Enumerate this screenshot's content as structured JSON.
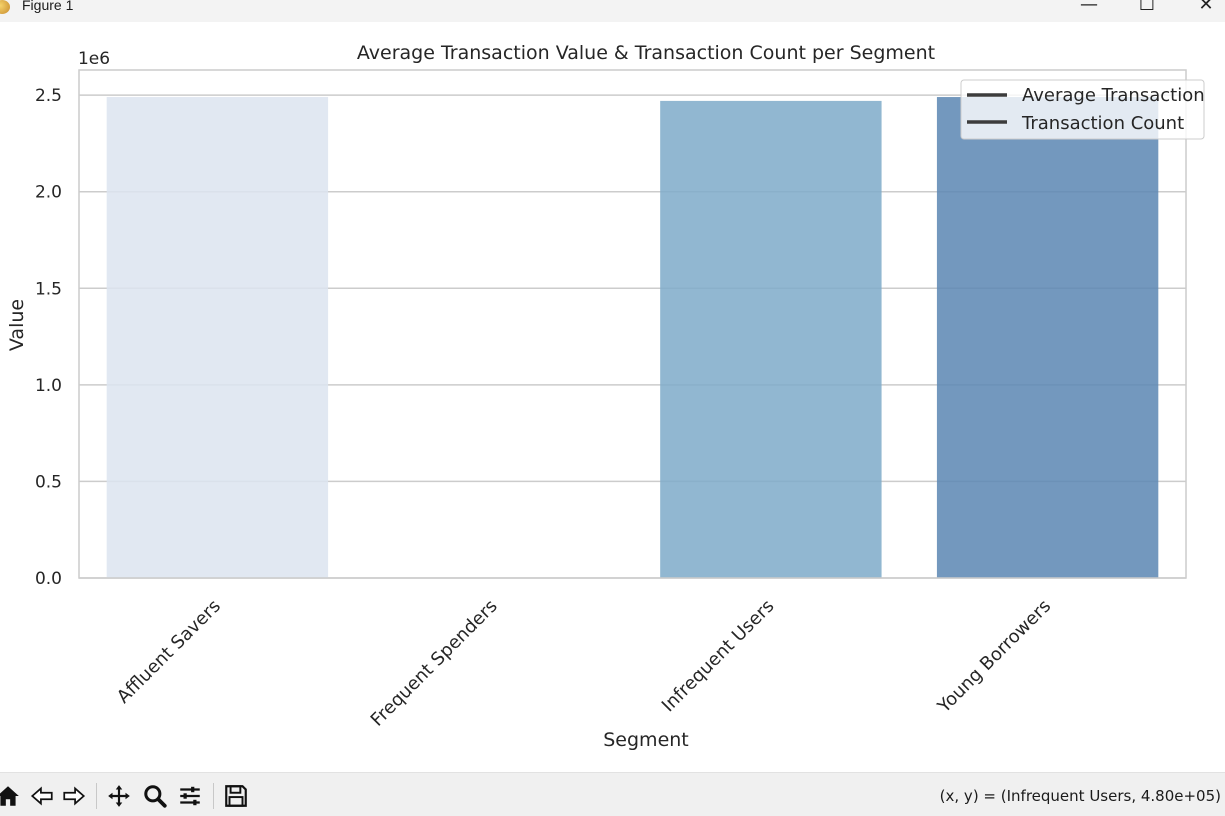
{
  "window": {
    "title": "Figure 1",
    "minimize_glyph": "—",
    "maximize_glyph": "☐",
    "close_glyph": "✕"
  },
  "status": {
    "coord_text": "(x, y) = (Infrequent Users, 4.80e+05)"
  },
  "toolbar": {
    "buttons": [
      {
        "name": "home-icon"
      },
      {
        "name": "back-arrow-icon"
      },
      {
        "name": "forward-arrow-icon"
      },
      {
        "name": "pan-move-icon"
      },
      {
        "name": "zoom-magnifier-icon"
      },
      {
        "name": "configure-subplots-icon"
      },
      {
        "name": "save-floppy-icon"
      }
    ]
  },
  "chart_data": {
    "type": "bar",
    "title": "Average Transaction Value & Transaction Count per Segment",
    "xlabel": "Segment",
    "ylabel": "Value",
    "offset_label": "1e6",
    "categories": [
      "Affluent Savers",
      "Frequent Spenders",
      "Infrequent Users",
      "Young Borrowers"
    ],
    "values": [
      2.49,
      0.0,
      2.47,
      2.49
    ],
    "value_scale": 1000000,
    "bar_colors": [
      "#dce4f0",
      "#c4d6e9",
      "#7eaac9",
      "#5a86b3"
    ],
    "bar_alpha": 0.85,
    "ylim": [
      0,
      2.63
    ],
    "yticks": [
      0.0,
      0.5,
      1.0,
      1.5,
      2.0,
      2.5
    ],
    "ytick_labels": [
      "0.0",
      "0.5",
      "1.0",
      "1.5",
      "2.0",
      "2.5"
    ],
    "grid": true,
    "legend": {
      "placement": "top-right",
      "entries": [
        "Average Transaction",
        "Transaction Count"
      ],
      "line_color": "#3c3c3c"
    }
  }
}
